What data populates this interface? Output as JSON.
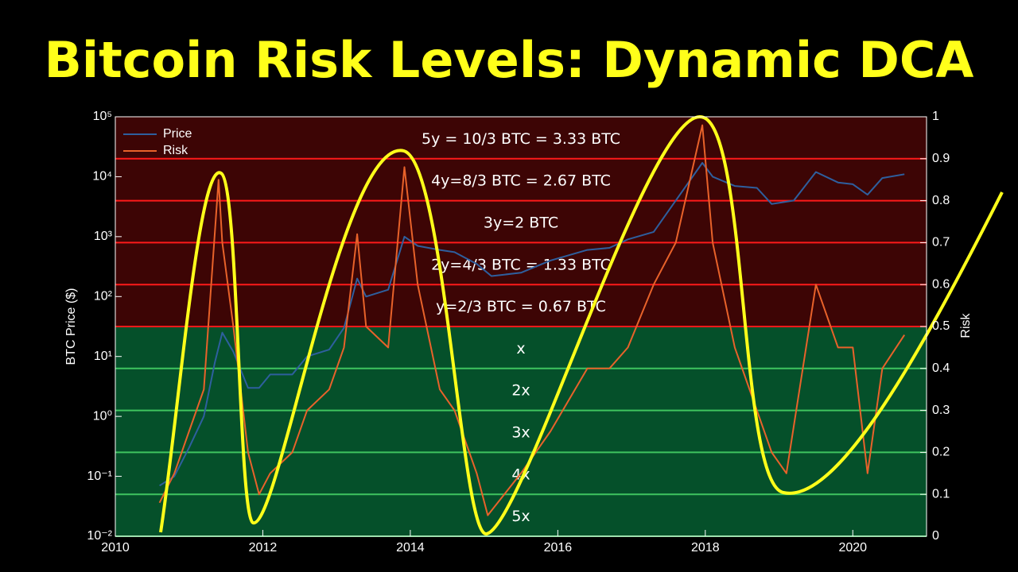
{
  "chart_data": {
    "type": "line",
    "title": "Bitcoin Risk Levels: Dynamic DCA",
    "y_label": "BTC Price ($)",
    "y2_label": "Risk",
    "xlim": [
      2010,
      2021
    ],
    "xticks": [
      2010,
      2012,
      2014,
      2016,
      2018,
      2020
    ],
    "ylim": [
      0.01,
      100000
    ],
    "log_y": true,
    "yticks": [
      {
        "value": 0.01,
        "label": "10⁻²"
      },
      {
        "value": 0.1,
        "label": "10⁻¹"
      },
      {
        "value": 1,
        "label": "10⁰"
      },
      {
        "value": 10,
        "label": "10¹"
      },
      {
        "value": 100,
        "label": "10²"
      },
      {
        "value": 1000,
        "label": "10³"
      },
      {
        "value": 10000,
        "label": "10⁴"
      },
      {
        "value": 100000,
        "label": "10⁵"
      }
    ],
    "y2lim": [
      0,
      1
    ],
    "y2ticks": [
      0,
      0.1,
      0.2,
      0.3,
      0.4,
      0.5,
      0.6,
      0.7,
      0.8,
      0.9,
      1
    ],
    "legend": "upper left",
    "bands": [
      {
        "low": 0.9,
        "high": 1,
        "label": "5y = 10/3 BTC = 3.33 BTC",
        "zone": "sell"
      },
      {
        "low": 0.8,
        "high": 0.9,
        "label": "4y=8/3 BTC = 2.67 BTC",
        "zone": "sell"
      },
      {
        "low": 0.7,
        "high": 0.8,
        "label": "3y=2 BTC",
        "zone": "sell"
      },
      {
        "low": 0.6,
        "high": 0.7,
        "label": "2y=4/3 BTC = 1.33 BTC",
        "zone": "sell"
      },
      {
        "low": 0.5,
        "high": 0.6,
        "label": "y=2/3 BTC = 0.67 BTC",
        "zone": "sell"
      },
      {
        "low": 0.4,
        "high": 0.5,
        "label": "x",
        "zone": "buy"
      },
      {
        "low": 0.3,
        "high": 0.4,
        "label": "2x",
        "zone": "buy"
      },
      {
        "low": 0.2,
        "high": 0.3,
        "label": "3x",
        "zone": "buy"
      },
      {
        "low": 0.1,
        "high": 0.2,
        "label": "4x",
        "zone": "buy"
      },
      {
        "low": 0,
        "high": 0.1,
        "label": "5x",
        "zone": "buy"
      }
    ],
    "series": [
      {
        "name": "Price",
        "color": "#2e5f9e",
        "x": [
          2010.6,
          2010.8,
          2011.0,
          2011.2,
          2011.35,
          2011.45,
          2011.6,
          2011.8,
          2011.95,
          2012.1,
          2012.4,
          2012.6,
          2012.9,
          2013.1,
          2013.28,
          2013.4,
          2013.7,
          2013.92,
          2014.1,
          2014.4,
          2014.6,
          2014.9,
          2015.1,
          2015.5,
          2015.9,
          2016.4,
          2016.7,
          2016.95,
          2017.3,
          2017.6,
          2017.96,
          2018.1,
          2018.4,
          2018.7,
          2018.9,
          2019.2,
          2019.5,
          2019.8,
          2020.0,
          2020.2,
          2020.4,
          2020.7
        ],
        "values": [
          0.07,
          0.1,
          0.3,
          1,
          8,
          25,
          12,
          3,
          3,
          5,
          5,
          10,
          13,
          30,
          200,
          100,
          130,
          1000,
          700,
          600,
          550,
          350,
          220,
          250,
          400,
          600,
          650,
          900,
          1200,
          4000,
          17000,
          10000,
          7000,
          6500,
          3500,
          4000,
          12000,
          8000,
          7500,
          5000,
          9500,
          11000
        ]
      },
      {
        "name": "Risk",
        "color": "#e8622a",
        "axis": "y2",
        "x": [
          2010.6,
          2010.8,
          2011.0,
          2011.2,
          2011.4,
          2011.45,
          2011.6,
          2011.8,
          2011.95,
          2012.1,
          2012.4,
          2012.6,
          2012.9,
          2013.1,
          2013.28,
          2013.4,
          2013.7,
          2013.92,
          2014.1,
          2014.4,
          2014.6,
          2014.9,
          2015.05,
          2015.5,
          2015.9,
          2016.4,
          2016.7,
          2016.95,
          2017.3,
          2017.6,
          2017.96,
          2018.1,
          2018.4,
          2018.7,
          2018.9,
          2019.1,
          2019.5,
          2019.8,
          2020.0,
          2020.2,
          2020.4,
          2020.7
        ],
        "values": [
          0.08,
          0.15,
          0.25,
          0.35,
          0.85,
          0.7,
          0.5,
          0.2,
          0.1,
          0.15,
          0.2,
          0.3,
          0.35,
          0.45,
          0.72,
          0.5,
          0.45,
          0.88,
          0.6,
          0.35,
          0.3,
          0.15,
          0.05,
          0.15,
          0.25,
          0.4,
          0.4,
          0.45,
          0.6,
          0.7,
          0.98,
          0.7,
          0.45,
          0.3,
          0.2,
          0.15,
          0.6,
          0.45,
          0.45,
          0.15,
          0.4,
          0.48
        ]
      }
    ]
  }
}
